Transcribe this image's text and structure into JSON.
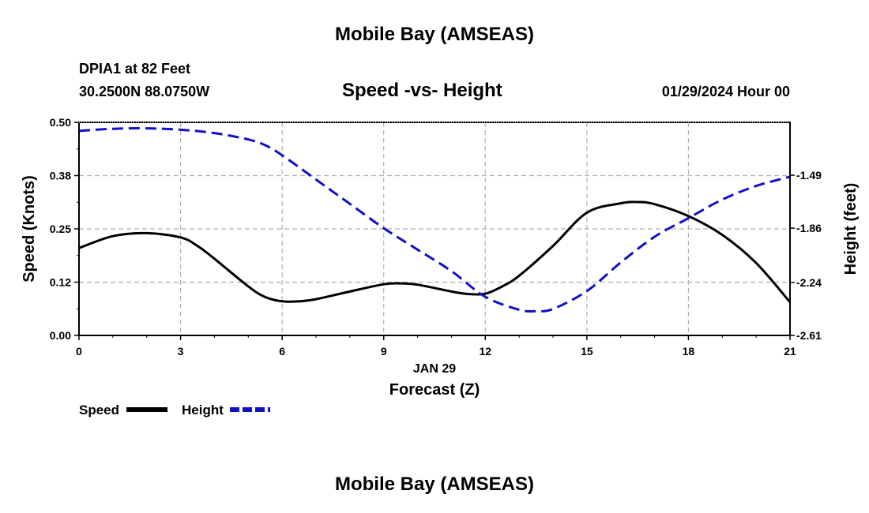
{
  "page": {
    "top_title": "Mobile Bay (AMSEAS)",
    "bottom_title": "Mobile Bay (AMSEAS)",
    "station": "DPIA1 at 82 Feet",
    "coords": "30.2500N  88.0750W",
    "datetime": "01/29/2024 Hour 00"
  },
  "chart_data": {
    "type": "line",
    "title": "Speed -vs- Height",
    "xlabel": "Forecast (Z)",
    "xdate": "JAN 29",
    "ylabel_left": "Speed (Knots)",
    "ylabel_right": "Height (feet)",
    "xlim": [
      0,
      21
    ],
    "ylim_left": [
      0.0,
      0.5
    ],
    "ylim_right": [
      -2.61,
      -1.12
    ],
    "x_ticks": [
      0,
      3,
      6,
      9,
      12,
      15,
      18,
      21
    ],
    "x_tick_labels": [
      "0",
      "3",
      "6",
      "9",
      "12",
      "15",
      "18",
      "21"
    ],
    "left_ticks": [
      0.0,
      0.125,
      0.25,
      0.375,
      0.5
    ],
    "left_tick_labels": [
      "0.00",
      "0.12",
      "0.25",
      "0.38",
      "0.50"
    ],
    "right_ticks": [
      -2.61,
      -2.24,
      -1.86,
      -1.49
    ],
    "right_tick_labels": [
      "-2.61",
      "-2.24",
      "-1.86",
      "-1.49"
    ],
    "grid": true,
    "legend": [
      {
        "name": "Speed",
        "color": "#000000",
        "dash": "solid"
      },
      {
        "name": "Height",
        "color": "#1010c8",
        "dash": "dashed"
      }
    ],
    "series": [
      {
        "name": "Speed",
        "axis": "left",
        "color": "#000000",
        "x": [
          0,
          1,
          2,
          3,
          3.5,
          4,
          5,
          5.5,
          6,
          6.5,
          7,
          8,
          9,
          9.5,
          10,
          11,
          11.5,
          12,
          12.5,
          13,
          14,
          15,
          16,
          16.5,
          17,
          18,
          19,
          20,
          21
        ],
        "values": [
          0.205,
          0.233,
          0.24,
          0.23,
          0.21,
          0.18,
          0.115,
          0.09,
          0.08,
          0.08,
          0.085,
          0.103,
          0.12,
          0.122,
          0.119,
          0.103,
          0.097,
          0.098,
          0.115,
          0.14,
          0.21,
          0.288,
          0.31,
          0.313,
          0.308,
          0.28,
          0.236,
          0.17,
          0.078
        ]
      },
      {
        "name": "Height",
        "axis": "right",
        "color": "#1010c8",
        "x": [
          0,
          1,
          2,
          3,
          4,
          5,
          5.5,
          6,
          7,
          8,
          9,
          10,
          11,
          12,
          13,
          13.5,
          14,
          15,
          16,
          17,
          18,
          19,
          20,
          21
        ],
        "values": [
          -1.18,
          -1.165,
          -1.162,
          -1.172,
          -1.195,
          -1.24,
          -1.28,
          -1.35,
          -1.52,
          -1.69,
          -1.86,
          -2.01,
          -2.16,
          -2.34,
          -2.43,
          -2.44,
          -2.425,
          -2.3,
          -2.1,
          -1.92,
          -1.79,
          -1.66,
          -1.565,
          -1.5
        ]
      }
    ]
  }
}
